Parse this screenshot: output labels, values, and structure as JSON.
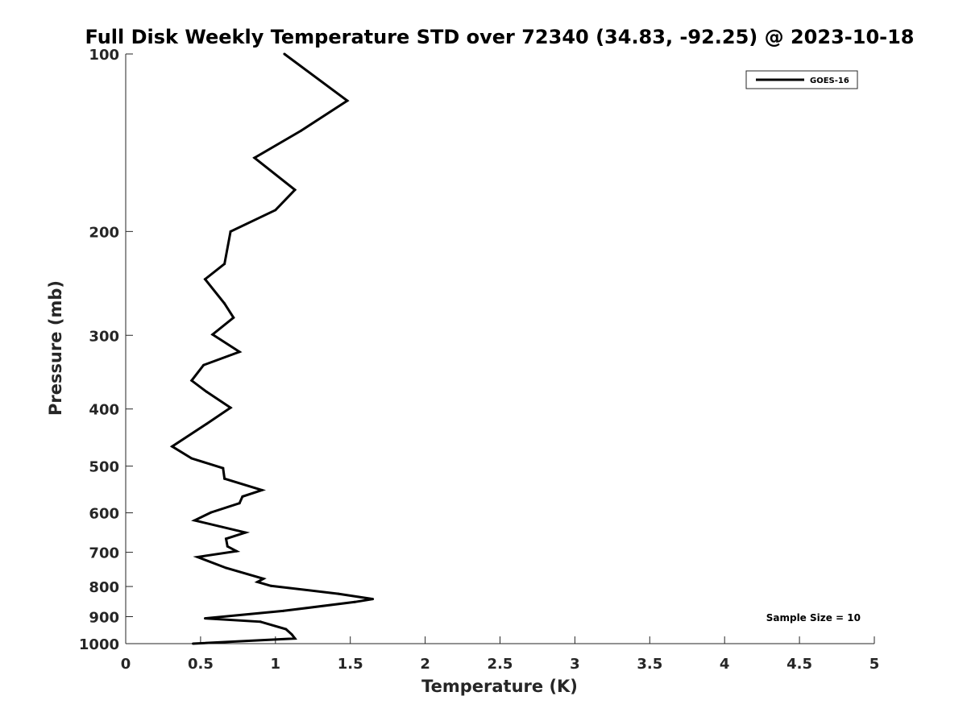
{
  "chart_data": {
    "type": "line",
    "title": "Full Disk Weekly Temperature STD over 72340 (34.83, -92.25) @ 2023-10-18",
    "xlabel": "Temperature (K)",
    "ylabel": "Pressure (mb)",
    "xlim": [
      0,
      5
    ],
    "ylim": [
      1000,
      100
    ],
    "yscale": "log",
    "y_reversed": true,
    "x_ticks": [
      0,
      0.5,
      1,
      1.5,
      2,
      2.5,
      3,
      3.5,
      4,
      4.5,
      5
    ],
    "x_tick_labels": [
      "0",
      "0.5",
      "1",
      "1.5",
      "2",
      "2.5",
      "3",
      "3.5",
      "4",
      "4.5",
      "5"
    ],
    "y_ticks": [
      100,
      200,
      300,
      400,
      500,
      600,
      700,
      800,
      900,
      1000
    ],
    "y_tick_labels": [
      "100",
      "200",
      "300",
      "400",
      "500",
      "600",
      "700",
      "800",
      "900",
      "1000"
    ],
    "grid": false,
    "legend_position": "top-right",
    "annotation": "Sample Size = 10",
    "series": [
      {
        "name": "GOES-16",
        "color": "#000000",
        "points": [
          [
            1.06,
            100
          ],
          [
            1.48,
            120
          ],
          [
            1.17,
            135
          ],
          [
            0.86,
            150
          ],
          [
            1.13,
            170
          ],
          [
            1.0,
            184
          ],
          [
            0.7,
            200
          ],
          [
            0.66,
            227
          ],
          [
            0.53,
            241
          ],
          [
            0.66,
            265
          ],
          [
            0.72,
            280
          ],
          [
            0.58,
            299
          ],
          [
            0.76,
            320
          ],
          [
            0.52,
            337
          ],
          [
            0.44,
            358
          ],
          [
            0.54,
            374
          ],
          [
            0.7,
            398
          ],
          [
            0.54,
            424
          ],
          [
            0.31,
            463
          ],
          [
            0.44,
            485
          ],
          [
            0.65,
            504
          ],
          [
            0.66,
            525
          ],
          [
            0.91,
            549
          ],
          [
            0.78,
            563
          ],
          [
            0.76,
            578
          ],
          [
            0.57,
            599
          ],
          [
            0.46,
            618
          ],
          [
            0.8,
            648
          ],
          [
            0.67,
            664
          ],
          [
            0.68,
            684
          ],
          [
            0.74,
            697
          ],
          [
            0.48,
            713
          ],
          [
            0.67,
            744
          ],
          [
            0.92,
            776
          ],
          [
            0.88,
            786
          ],
          [
            0.97,
            798
          ],
          [
            1.42,
            823
          ],
          [
            1.65,
            840
          ],
          [
            1.53,
            850
          ],
          [
            1.05,
            880
          ],
          [
            0.53,
            906
          ],
          [
            0.9,
            918
          ],
          [
            1.07,
            945
          ],
          [
            1.11,
            965
          ],
          [
            1.13,
            980
          ],
          [
            0.45,
            1000
          ]
        ]
      }
    ]
  }
}
